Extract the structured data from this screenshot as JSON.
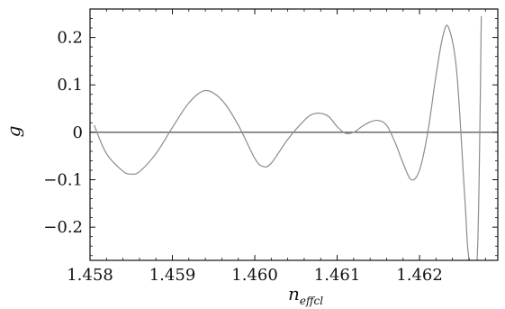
{
  "chart_data": {
    "type": "line",
    "title": "",
    "xlabel": "n",
    "xlabel_subscript": "effcl",
    "ylabel": "g",
    "xlim": [
      1.458,
      1.46295
    ],
    "ylim": [
      -0.27,
      0.26
    ],
    "xticks": [
      {
        "value": 1.458,
        "label": "1.458"
      },
      {
        "value": 1.459,
        "label": "1.459"
      },
      {
        "value": 1.46,
        "label": "1.460"
      },
      {
        "value": 1.461,
        "label": "1.461"
      },
      {
        "value": 1.462,
        "label": "1.462"
      }
    ],
    "yticks": [
      {
        "value": 0.2,
        "label": "0.2"
      },
      {
        "value": 0.1,
        "label": "0.1"
      },
      {
        "value": 0.0,
        "label": "0"
      },
      {
        "value": -0.1,
        "label": "−0.1"
      },
      {
        "value": -0.2,
        "label": "−0.2"
      }
    ],
    "reference_line": {
      "y": 0
    },
    "series": [
      {
        "color": "#8c8c8c",
        "x": [
          1.45805,
          1.4582,
          1.4584,
          1.4585,
          1.4586,
          1.4588,
          1.459,
          1.4592,
          1.4594,
          1.4596,
          1.4598,
          1.46,
          1.4601,
          1.4602,
          1.4604,
          1.4606,
          1.4607,
          1.4608,
          1.4609,
          1.461,
          1.4611,
          1.4612,
          1.4613,
          1.4614,
          1.4615,
          1.4616,
          1.4617,
          1.4618,
          1.4619,
          1.462,
          1.4621,
          1.4622,
          1.46228,
          1.46235,
          1.46245,
          1.46255,
          1.4626,
          1.4627,
          1.46275
        ],
        "y": [
          0.015,
          -0.045,
          -0.082,
          -0.088,
          -0.083,
          -0.045,
          0.01,
          0.062,
          0.088,
          0.068,
          0.015,
          -0.055,
          -0.072,
          -0.065,
          -0.015,
          0.025,
          0.038,
          0.04,
          0.033,
          0.012,
          -0.002,
          0.0,
          0.012,
          0.022,
          0.025,
          0.015,
          -0.02,
          -0.065,
          -0.1,
          -0.08,
          0.0,
          0.12,
          0.2,
          0.222,
          0.13,
          -0.14,
          -0.265,
          -0.265,
          0.245
        ]
      }
    ]
  }
}
